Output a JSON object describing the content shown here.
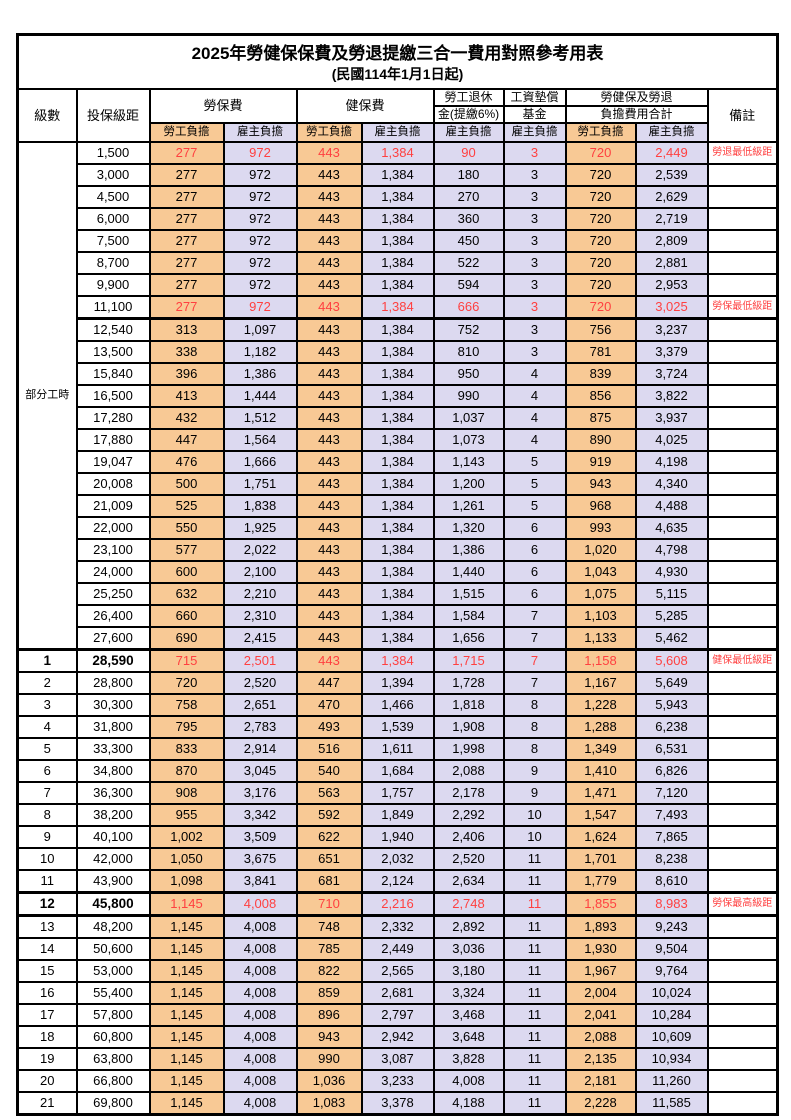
{
  "title": "2025年勞健保保費及勞退提繳三合一費用對照參考用表",
  "subtitle": "(民國114年1月1日起)",
  "header": {
    "level": "級數",
    "bracket": "投保級距",
    "labor_insurance": "勞保費",
    "health_insurance": "健保費",
    "pension_line1": "勞工退休",
    "pension_line2": "金(提繳6%)",
    "wage_fund_line1": "工資墊償",
    "wage_fund_line2": "基金",
    "total_line1": "勞健保及勞退",
    "total_line2": "負擔費用合計",
    "remark": "備註",
    "employee_share": "勞工負擔",
    "employer_share": "雇主負擔"
  },
  "part_time_label": "部分工時",
  "part_time_rowspan": 23,
  "colors": {
    "employee_col_bg": "#f8c995",
    "employer_col_bg": "#dcd9f0",
    "highlight_text": "#ff4040",
    "border": "#000000"
  },
  "rows": [
    {
      "level": "",
      "bracket": "1,500",
      "values": [
        "277",
        "972",
        "443",
        "1,384",
        "90",
        "3",
        "720",
        "2,449"
      ],
      "remark": "勞退最低級距",
      "highlight": true,
      "bold": false,
      "section_top": false
    },
    {
      "level": "",
      "bracket": "3,000",
      "values": [
        "277",
        "972",
        "443",
        "1,384",
        "180",
        "3",
        "720",
        "2,539"
      ],
      "remark": "",
      "highlight": false,
      "bold": false,
      "section_top": false
    },
    {
      "level": "",
      "bracket": "4,500",
      "values": [
        "277",
        "972",
        "443",
        "1,384",
        "270",
        "3",
        "720",
        "2,629"
      ],
      "remark": "",
      "highlight": false,
      "bold": false,
      "section_top": false
    },
    {
      "level": "",
      "bracket": "6,000",
      "values": [
        "277",
        "972",
        "443",
        "1,384",
        "360",
        "3",
        "720",
        "2,719"
      ],
      "remark": "",
      "highlight": false,
      "bold": false,
      "section_top": false
    },
    {
      "level": "",
      "bracket": "7,500",
      "values": [
        "277",
        "972",
        "443",
        "1,384",
        "450",
        "3",
        "720",
        "2,809"
      ],
      "remark": "",
      "highlight": false,
      "bold": false,
      "section_top": false
    },
    {
      "level": "",
      "bracket": "8,700",
      "values": [
        "277",
        "972",
        "443",
        "1,384",
        "522",
        "3",
        "720",
        "2,881"
      ],
      "remark": "",
      "highlight": false,
      "bold": false,
      "section_top": false
    },
    {
      "level": "",
      "bracket": "9,900",
      "values": [
        "277",
        "972",
        "443",
        "1,384",
        "594",
        "3",
        "720",
        "2,953"
      ],
      "remark": "",
      "highlight": false,
      "bold": false,
      "section_top": false
    },
    {
      "level": "",
      "bracket": "11,100",
      "values": [
        "277",
        "972",
        "443",
        "1,384",
        "666",
        "3",
        "720",
        "3,025"
      ],
      "remark": "勞保最低級距",
      "highlight": true,
      "bold": false,
      "section_top": false
    },
    {
      "level": "",
      "bracket": "12,540",
      "values": [
        "313",
        "1,097",
        "443",
        "1,384",
        "752",
        "3",
        "756",
        "3,237"
      ],
      "remark": "",
      "highlight": false,
      "bold": false,
      "section_top": true
    },
    {
      "level": "",
      "bracket": "13,500",
      "values": [
        "338",
        "1,182",
        "443",
        "1,384",
        "810",
        "3",
        "781",
        "3,379"
      ],
      "remark": "",
      "highlight": false,
      "bold": false,
      "section_top": false
    },
    {
      "level": "",
      "bracket": "15,840",
      "values": [
        "396",
        "1,386",
        "443",
        "1,384",
        "950",
        "4",
        "839",
        "3,724"
      ],
      "remark": "",
      "highlight": false,
      "bold": false,
      "section_top": false
    },
    {
      "level": "",
      "bracket": "16,500",
      "values": [
        "413",
        "1,444",
        "443",
        "1,384",
        "990",
        "4",
        "856",
        "3,822"
      ],
      "remark": "",
      "highlight": false,
      "bold": false,
      "section_top": false
    },
    {
      "level": "",
      "bracket": "17,280",
      "values": [
        "432",
        "1,512",
        "443",
        "1,384",
        "1,037",
        "4",
        "875",
        "3,937"
      ],
      "remark": "",
      "highlight": false,
      "bold": false,
      "section_top": false
    },
    {
      "level": "",
      "bracket": "17,880",
      "values": [
        "447",
        "1,564",
        "443",
        "1,384",
        "1,073",
        "4",
        "890",
        "4,025"
      ],
      "remark": "",
      "highlight": false,
      "bold": false,
      "section_top": false
    },
    {
      "level": "",
      "bracket": "19,047",
      "values": [
        "476",
        "1,666",
        "443",
        "1,384",
        "1,143",
        "5",
        "919",
        "4,198"
      ],
      "remark": "",
      "highlight": false,
      "bold": false,
      "section_top": false
    },
    {
      "level": "",
      "bracket": "20,008",
      "values": [
        "500",
        "1,751",
        "443",
        "1,384",
        "1,200",
        "5",
        "943",
        "4,340"
      ],
      "remark": "",
      "highlight": false,
      "bold": false,
      "section_top": false
    },
    {
      "level": "",
      "bracket": "21,009",
      "values": [
        "525",
        "1,838",
        "443",
        "1,384",
        "1,261",
        "5",
        "968",
        "4,488"
      ],
      "remark": "",
      "highlight": false,
      "bold": false,
      "section_top": false
    },
    {
      "level": "",
      "bracket": "22,000",
      "values": [
        "550",
        "1,925",
        "443",
        "1,384",
        "1,320",
        "6",
        "993",
        "4,635"
      ],
      "remark": "",
      "highlight": false,
      "bold": false,
      "section_top": false
    },
    {
      "level": "",
      "bracket": "23,100",
      "values": [
        "577",
        "2,022",
        "443",
        "1,384",
        "1,386",
        "6",
        "1,020",
        "4,798"
      ],
      "remark": "",
      "highlight": false,
      "bold": false,
      "section_top": false
    },
    {
      "level": "",
      "bracket": "24,000",
      "values": [
        "600",
        "2,100",
        "443",
        "1,384",
        "1,440",
        "6",
        "1,043",
        "4,930"
      ],
      "remark": "",
      "highlight": false,
      "bold": false,
      "section_top": false
    },
    {
      "level": "",
      "bracket": "25,250",
      "values": [
        "632",
        "2,210",
        "443",
        "1,384",
        "1,515",
        "6",
        "1,075",
        "5,115"
      ],
      "remark": "",
      "highlight": false,
      "bold": false,
      "section_top": false
    },
    {
      "level": "",
      "bracket": "26,400",
      "values": [
        "660",
        "2,310",
        "443",
        "1,384",
        "1,584",
        "7",
        "1,103",
        "5,285"
      ],
      "remark": "",
      "highlight": false,
      "bold": false,
      "section_top": false
    },
    {
      "level": "",
      "bracket": "27,600",
      "values": [
        "690",
        "2,415",
        "443",
        "1,384",
        "1,656",
        "7",
        "1,133",
        "5,462"
      ],
      "remark": "",
      "highlight": false,
      "bold": false,
      "section_top": false
    },
    {
      "level": "1",
      "bracket": "28,590",
      "values": [
        "715",
        "2,501",
        "443",
        "1,384",
        "1,715",
        "7",
        "1,158",
        "5,608"
      ],
      "remark": "健保最低級距",
      "highlight": true,
      "bold": true,
      "section_top": true
    },
    {
      "level": "2",
      "bracket": "28,800",
      "values": [
        "720",
        "2,520",
        "447",
        "1,394",
        "1,728",
        "7",
        "1,167",
        "5,649"
      ],
      "remark": "",
      "highlight": false,
      "bold": false,
      "section_top": false
    },
    {
      "level": "3",
      "bracket": "30,300",
      "values": [
        "758",
        "2,651",
        "470",
        "1,466",
        "1,818",
        "8",
        "1,228",
        "5,943"
      ],
      "remark": "",
      "highlight": false,
      "bold": false,
      "section_top": false
    },
    {
      "level": "4",
      "bracket": "31,800",
      "values": [
        "795",
        "2,783",
        "493",
        "1,539",
        "1,908",
        "8",
        "1,288",
        "6,238"
      ],
      "remark": "",
      "highlight": false,
      "bold": false,
      "section_top": false
    },
    {
      "level": "5",
      "bracket": "33,300",
      "values": [
        "833",
        "2,914",
        "516",
        "1,611",
        "1,998",
        "8",
        "1,349",
        "6,531"
      ],
      "remark": "",
      "highlight": false,
      "bold": false,
      "section_top": false
    },
    {
      "level": "6",
      "bracket": "34,800",
      "values": [
        "870",
        "3,045",
        "540",
        "1,684",
        "2,088",
        "9",
        "1,410",
        "6,826"
      ],
      "remark": "",
      "highlight": false,
      "bold": false,
      "section_top": false
    },
    {
      "level": "7",
      "bracket": "36,300",
      "values": [
        "908",
        "3,176",
        "563",
        "1,757",
        "2,178",
        "9",
        "1,471",
        "7,120"
      ],
      "remark": "",
      "highlight": false,
      "bold": false,
      "section_top": false
    },
    {
      "level": "8",
      "bracket": "38,200",
      "values": [
        "955",
        "3,342",
        "592",
        "1,849",
        "2,292",
        "10",
        "1,547",
        "7,493"
      ],
      "remark": "",
      "highlight": false,
      "bold": false,
      "section_top": false
    },
    {
      "level": "9",
      "bracket": "40,100",
      "values": [
        "1,002",
        "3,509",
        "622",
        "1,940",
        "2,406",
        "10",
        "1,624",
        "7,865"
      ],
      "remark": "",
      "highlight": false,
      "bold": false,
      "section_top": false
    },
    {
      "level": "10",
      "bracket": "42,000",
      "values": [
        "1,050",
        "3,675",
        "651",
        "2,032",
        "2,520",
        "11",
        "1,701",
        "8,238"
      ],
      "remark": "",
      "highlight": false,
      "bold": false,
      "section_top": false
    },
    {
      "level": "11",
      "bracket": "43,900",
      "values": [
        "1,098",
        "3,841",
        "681",
        "2,124",
        "2,634",
        "11",
        "1,779",
        "8,610"
      ],
      "remark": "",
      "highlight": false,
      "bold": false,
      "section_top": false
    },
    {
      "level": "12",
      "bracket": "45,800",
      "values": [
        "1,145",
        "4,008",
        "710",
        "2,216",
        "2,748",
        "11",
        "1,855",
        "8,983"
      ],
      "remark": "勞保最高級距",
      "highlight": true,
      "bold": true,
      "section_top": true
    },
    {
      "level": "13",
      "bracket": "48,200",
      "values": [
        "1,145",
        "4,008",
        "748",
        "2,332",
        "2,892",
        "11",
        "1,893",
        "9,243"
      ],
      "remark": "",
      "highlight": false,
      "bold": false,
      "section_top": true
    },
    {
      "level": "14",
      "bracket": "50,600",
      "values": [
        "1,145",
        "4,008",
        "785",
        "2,449",
        "3,036",
        "11",
        "1,930",
        "9,504"
      ],
      "remark": "",
      "highlight": false,
      "bold": false,
      "section_top": false
    },
    {
      "level": "15",
      "bracket": "53,000",
      "values": [
        "1,145",
        "4,008",
        "822",
        "2,565",
        "3,180",
        "11",
        "1,967",
        "9,764"
      ],
      "remark": "",
      "highlight": false,
      "bold": false,
      "section_top": false
    },
    {
      "level": "16",
      "bracket": "55,400",
      "values": [
        "1,145",
        "4,008",
        "859",
        "2,681",
        "3,324",
        "11",
        "2,004",
        "10,024"
      ],
      "remark": "",
      "highlight": false,
      "bold": false,
      "section_top": false
    },
    {
      "level": "17",
      "bracket": "57,800",
      "values": [
        "1,145",
        "4,008",
        "896",
        "2,797",
        "3,468",
        "11",
        "2,041",
        "10,284"
      ],
      "remark": "",
      "highlight": false,
      "bold": false,
      "section_top": false
    },
    {
      "level": "18",
      "bracket": "60,800",
      "values": [
        "1,145",
        "4,008",
        "943",
        "2,942",
        "3,648",
        "11",
        "2,088",
        "10,609"
      ],
      "remark": "",
      "highlight": false,
      "bold": false,
      "section_top": false
    },
    {
      "level": "19",
      "bracket": "63,800",
      "values": [
        "1,145",
        "4,008",
        "990",
        "3,087",
        "3,828",
        "11",
        "2,135",
        "10,934"
      ],
      "remark": "",
      "highlight": false,
      "bold": false,
      "section_top": false
    },
    {
      "level": "20",
      "bracket": "66,800",
      "values": [
        "1,145",
        "4,008",
        "1,036",
        "3,233",
        "4,008",
        "11",
        "2,181",
        "11,260"
      ],
      "remark": "",
      "highlight": false,
      "bold": false,
      "section_top": false
    },
    {
      "level": "21",
      "bracket": "69,800",
      "values": [
        "1,145",
        "4,008",
        "1,083",
        "3,378",
        "4,188",
        "11",
        "2,228",
        "11,585"
      ],
      "remark": "",
      "highlight": false,
      "bold": false,
      "section_top": false
    }
  ]
}
